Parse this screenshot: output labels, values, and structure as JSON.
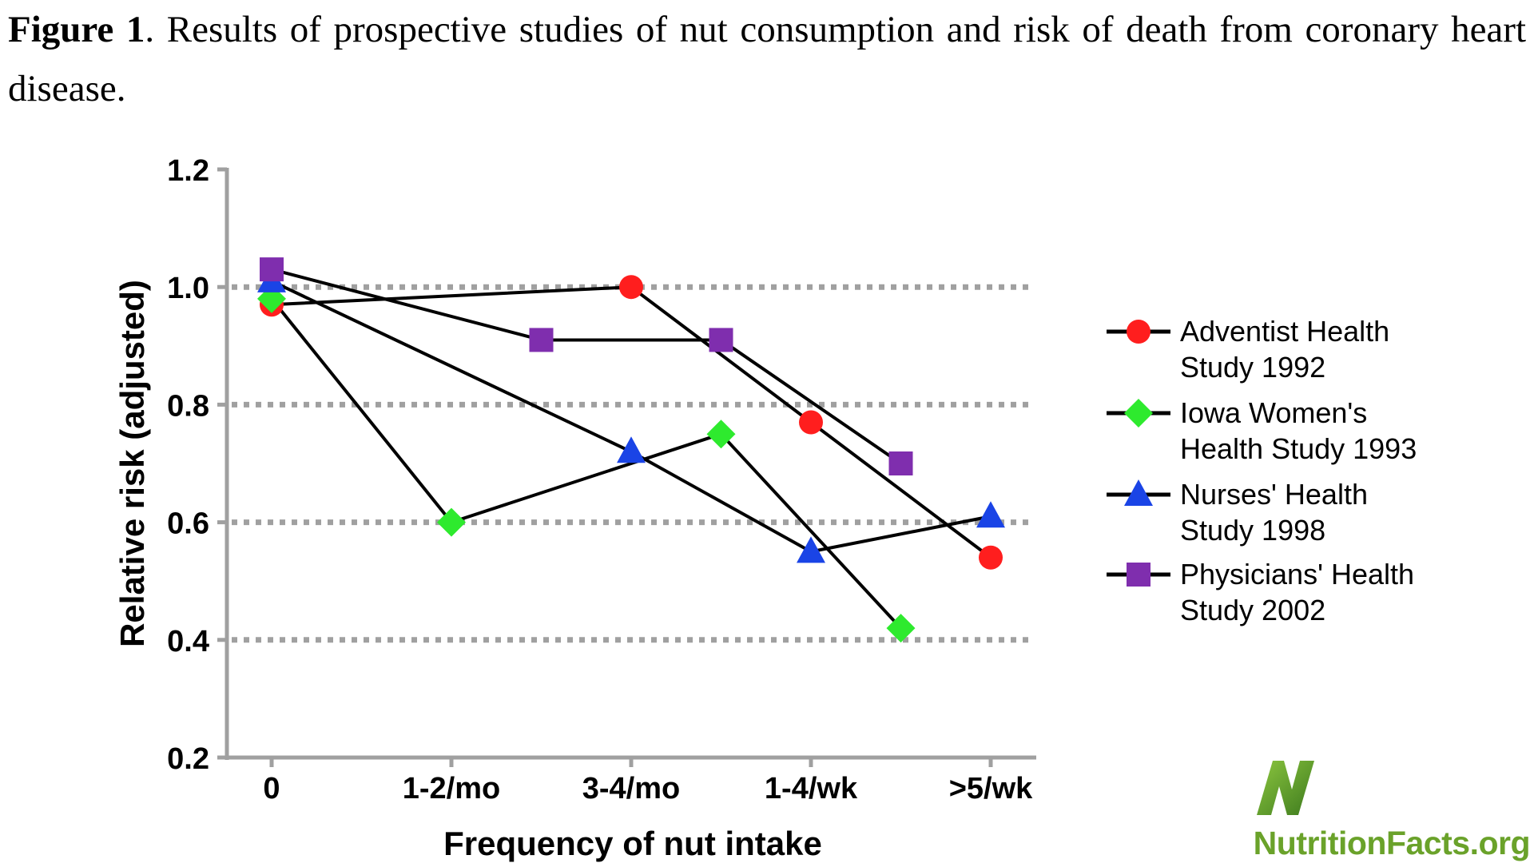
{
  "caption": {
    "label": "Figure 1",
    "text": ". Results of prospective studies of nut consumption and risk of death from coronary heart disease."
  },
  "chart_data": {
    "type": "line",
    "title": "Figure 1. Results of prospective studies of nut consumption and risk of death from coronary heart disease.",
    "xlabel": "Frequency of nut intake",
    "ylabel": "Relative risk (adjusted)",
    "categories": [
      "0",
      "1-2/mo",
      "3-4/mo",
      "1-4/wk",
      ">5/wk"
    ],
    "yticks": [
      "0.2",
      "0.4",
      "0.6",
      "0.8",
      "1.0",
      "1.2"
    ],
    "ylim": [
      0.2,
      1.2
    ],
    "gridlines": [
      0.4,
      0.6,
      0.8,
      1.0
    ],
    "legend_position": "right",
    "series": [
      {
        "name": "Adventist Health Study 1992",
        "legend_lines": [
          "Adventist Health",
          "Study 1992"
        ],
        "marker": "circle",
        "color": "#ff1e1e",
        "x": [
          0,
          2,
          3,
          4
        ],
        "values": [
          0.97,
          1.0,
          0.77,
          0.54
        ]
      },
      {
        "name": "Iowa Women's Health Study 1993",
        "legend_lines": [
          "Iowa Women's",
          "Health Study 1993"
        ],
        "marker": "diamond",
        "color": "#2eea2e",
        "x": [
          0,
          1,
          2.5,
          3.5
        ],
        "values": [
          0.98,
          0.6,
          0.75,
          0.42
        ]
      },
      {
        "name": "Nurses' Health Study 1998",
        "legend_lines": [
          "Nurses' Health",
          "Study 1998"
        ],
        "marker": "triangle",
        "color": "#1a44e6",
        "x": [
          0,
          2,
          3,
          4
        ],
        "values": [
          1.01,
          0.72,
          0.55,
          0.61
        ]
      },
      {
        "name": "Physicians' Health Study 2002",
        "legend_lines": [
          "Physicians' Health",
          "Study 2002"
        ],
        "marker": "square",
        "color": "#7f2eae",
        "x": [
          0,
          1.5,
          2.5,
          3.5
        ],
        "values": [
          1.03,
          0.91,
          0.91,
          0.7
        ]
      }
    ]
  },
  "logo": {
    "text": "NutritionFacts.org",
    "colors": {
      "dark": "#3d7a1e",
      "light": "#8cc63f"
    }
  }
}
